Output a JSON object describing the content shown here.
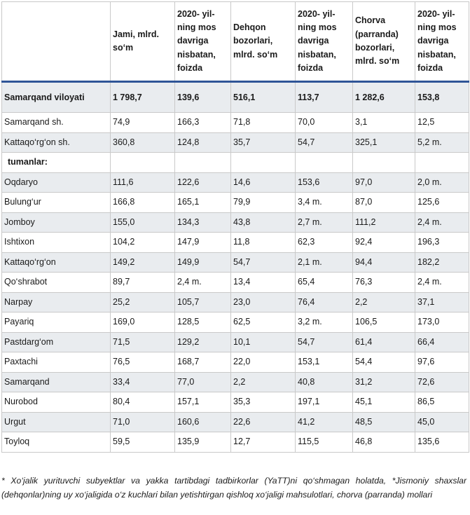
{
  "headers": [
    "",
    "Jami, mlrd. so‘m",
    "2020- yil-ning mos davriga nisbatan, foizda",
    "Dehqon bozorlari, mlrd. so‘m",
    "2020- yil-ning mos davriga nisbatan, foizda",
    "Chorva (parranda) bozorlari, mlrd. so‘m",
    "2020- yil-ning mos davriga nisbatan, foizda"
  ],
  "rows": [
    {
      "name": "Samarqand viloyati",
      "cells": [
        "1 798,7",
        "139,6",
        "516,1",
        "113,7",
        "1 282,6",
        "153,8"
      ]
    },
    {
      "name": "Samarqand sh.",
      "cells": [
        "74,9",
        "166,3",
        "71,8",
        "70,0",
        "3,1",
        "12,5"
      ]
    },
    {
      "name": "Kattaqo‘rg‘on  sh.",
      "cells": [
        "360,8",
        "124,8",
        "35,7",
        "54,7",
        "325,1",
        "5,2 m."
      ]
    },
    {
      "name": "tumanlar:",
      "cells": [
        "",
        "",
        "",
        "",
        "",
        ""
      ]
    },
    {
      "name": "Oqdaryo",
      "cells": [
        "111,6",
        "122,6",
        "14,6",
        "153,6",
        "97,0",
        "2,0 m."
      ]
    },
    {
      "name": "Bulung‘ur",
      "cells": [
        "166,8",
        "165,1",
        "79,9",
        "3,4 m.",
        "87,0",
        "125,6"
      ]
    },
    {
      "name": "Jomboy",
      "cells": [
        "155,0",
        "134,3",
        "43,8",
        "2,7 m.",
        "111,2",
        "2,4 m."
      ]
    },
    {
      "name": "Ishtixon",
      "cells": [
        "104,2",
        "147,9",
        "11,8",
        "62,3",
        "92,4",
        "196,3"
      ]
    },
    {
      "name": "Kattaqo‘rg‘on",
      "cells": [
        "149,2",
        "149,9",
        "54,7",
        "2,1 m.",
        "94,4",
        "182,2"
      ]
    },
    {
      "name": "Qo‘shrabot",
      "cells": [
        "89,7",
        "2,4 m.",
        "13,4",
        "65,4",
        "76,3",
        "2,4 m."
      ]
    },
    {
      "name": "Narpay",
      "cells": [
        "25,2",
        "105,7",
        "23,0",
        "76,4",
        "2,2",
        "37,1"
      ]
    },
    {
      "name": "Payariq",
      "cells": [
        "169,0",
        "128,5",
        "62,5",
        "3,2 m.",
        "106,5",
        "173,0"
      ]
    },
    {
      "name": "Pastdarg‘om",
      "cells": [
        "71,5",
        "129,2",
        "10,1",
        "54,7",
        "61,4",
        "66,4"
      ]
    },
    {
      "name": "Paxtachi",
      "cells": [
        "76,5",
        "168,7",
        "22,0",
        "153,1",
        "54,4",
        "97,6"
      ]
    },
    {
      "name": "Samarqand",
      "cells": [
        "33,4",
        "77,0",
        "2,2",
        "40,8",
        "31,2",
        "72,6"
      ]
    },
    {
      "name": "Nurobod",
      "cells": [
        "80,4",
        "157,1",
        "35,3",
        "197,1",
        "45,1",
        "86,5"
      ]
    },
    {
      "name": "Urgut",
      "cells": [
        "71,0",
        "160,6",
        "22,6",
        "41,2",
        "48,5",
        "45,0"
      ]
    },
    {
      "name": "Toyloq",
      "cells": [
        "59,5",
        "135,9",
        "12,7",
        "115,5",
        "46,8",
        "135,6"
      ]
    }
  ],
  "footnote": "* Xo‘jalik yurituvchi subyektlar va yakka tartibdagi tadbirkorlar (YaTT)ni qo‘shmagan holatda,  *Jismoniy shaxslar (dehqonlar)ning  uy  xo‘jaligida  o‘z kuchlari  bilan  yetishtirgan  qishloq  xo‘jaligi  mahsulotlari, chorva (parranda) mollari"
}
